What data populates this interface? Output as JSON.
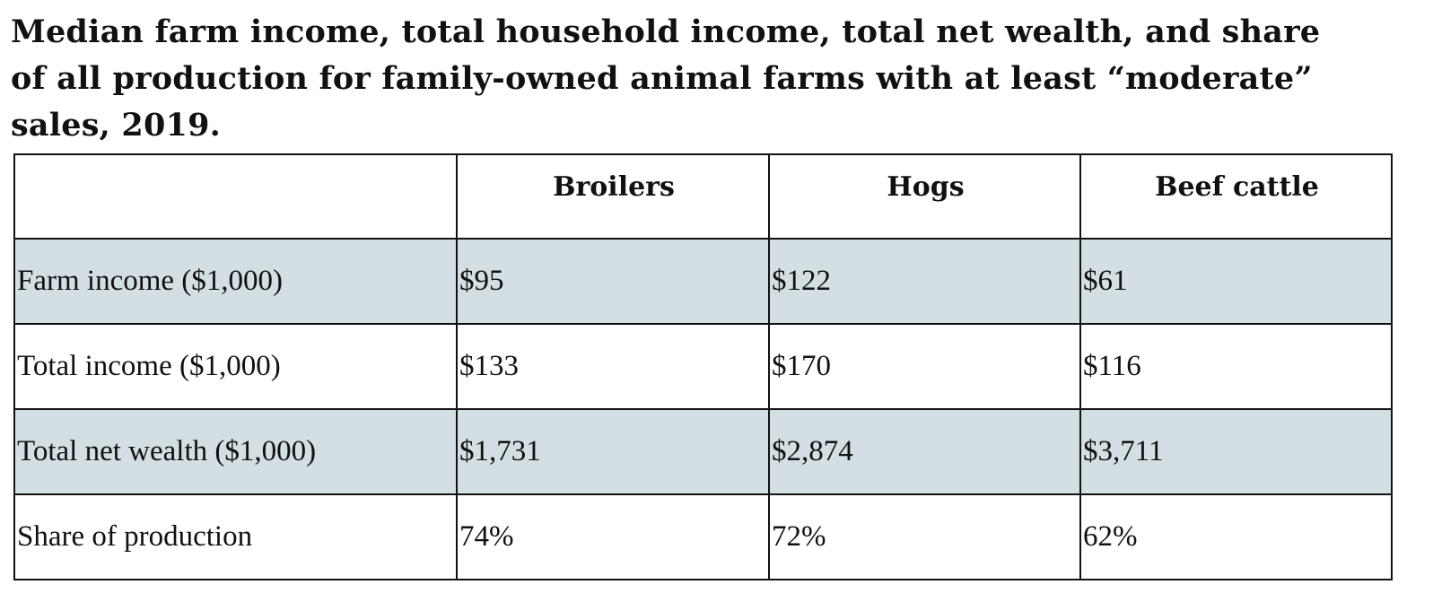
{
  "chart_data": {
    "type": "table",
    "title": "Median farm income, total household income, total net wealth, and share of all production for family-owned animal farms with at least “moderate” sales, 2019.",
    "columns": [
      "",
      "Broilers",
      "Hogs",
      "Beef cattle"
    ],
    "rows": [
      {
        "label": "Farm income ($1,000)",
        "values": [
          "$95",
          "$122",
          "$61"
        ]
      },
      {
        "label": "Total income ($1,000)",
        "values": [
          "$133",
          "$170",
          "$116"
        ]
      },
      {
        "label": "Total net wealth ($1,000)",
        "values": [
          "$1,731",
          "$2,874",
          "$3,711"
        ]
      },
      {
        "label": "Share of production",
        "values": [
          "74%",
          "72%",
          "62%"
        ]
      }
    ],
    "shaded_row_color": "#d3dfe3"
  }
}
